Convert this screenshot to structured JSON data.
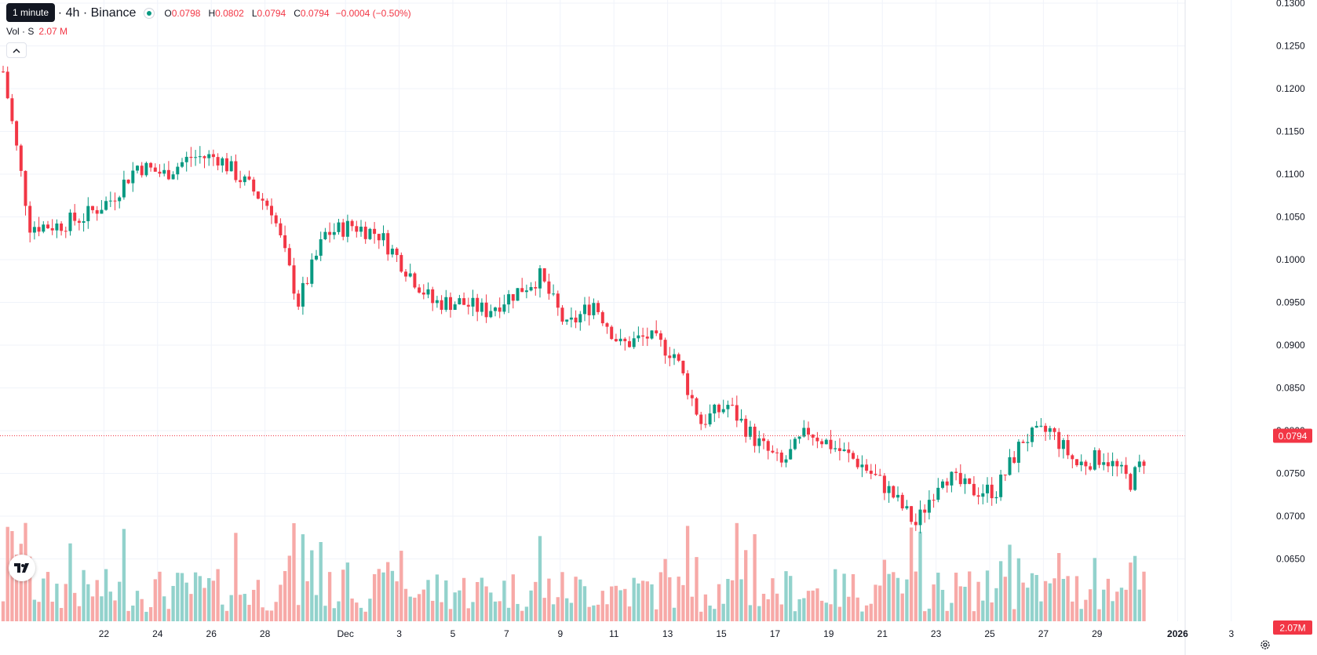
{
  "legend": {
    "symbol": "…herUS · 4h · Binance",
    "open_label": "O",
    "open": "0.0798",
    "high_label": "H",
    "high": "0.0802",
    "low_label": "L",
    "low": "0.0794",
    "close_label": "C",
    "close": "0.0794",
    "change": "−0.0004 (−0.50%)"
  },
  "tooltip": "1 minute",
  "volume_legend": {
    "label": "Vol · S",
    "value": "2.07 M"
  },
  "price_axis": {
    "labels": [
      "0.1300",
      "0.1250",
      "0.1200",
      "0.1150",
      "0.1100",
      "0.1050",
      "0.1000",
      "0.0950",
      "0.0900",
      "0.0850",
      "0.0800",
      "0.0750",
      "0.0700",
      "0.0650"
    ],
    "last_price": "0.0794",
    "last_volume": "2.07M"
  },
  "time_axis": {
    "labels": [
      "22",
      "24",
      "26",
      "28",
      "Dec",
      "3",
      "5",
      "7",
      "9",
      "11",
      "13",
      "15",
      "17",
      "19",
      "21",
      "23",
      "25",
      "27",
      "29",
      "2026",
      "3"
    ]
  },
  "icons": {
    "logo": "tradingview-logo-icon",
    "collapse": "chevron-up-icon",
    "settings": "gear-icon",
    "status": "market-open-dot-icon"
  },
  "colors": {
    "up": "#089981",
    "down": "#f23645",
    "up_volume": "#92d2cc",
    "down_volume": "#f7a9a7",
    "grid": "#f0f3fa"
  },
  "chart_data": {
    "type": "candlestick",
    "interval": "4h",
    "last_close": 0.0794,
    "waypoints": [
      {
        "date": "Nov 20",
        "price": 0.122
      },
      {
        "date": "Nov 21",
        "price": 0.104
      },
      {
        "date": "Nov 22",
        "price": 0.104
      },
      {
        "date": "Nov 23",
        "price": 0.105
      },
      {
        "date": "Nov 24",
        "price": 0.107
      },
      {
        "date": "Nov 25",
        "price": 0.111
      },
      {
        "date": "Nov 26",
        "price": 0.11
      },
      {
        "date": "Nov 27",
        "price": 0.112
      },
      {
        "date": "Nov 28",
        "price": 0.112
      },
      {
        "date": "Nov 29",
        "price": 0.109
      },
      {
        "date": "Nov 30",
        "price": 0.106
      },
      {
        "date": "Dec 1",
        "price": 0.095
      },
      {
        "date": "Dec 2",
        "price": 0.103
      },
      {
        "date": "Dec 3",
        "price": 0.104
      },
      {
        "date": "Dec 4",
        "price": 0.103
      },
      {
        "date": "Dec 5",
        "price": 0.099
      },
      {
        "date": "Dec 6",
        "price": 0.095
      },
      {
        "date": "Dec 7",
        "price": 0.095
      },
      {
        "date": "Dec 8",
        "price": 0.094
      },
      {
        "date": "Dec 9",
        "price": 0.096
      },
      {
        "date": "Dec 10",
        "price": 0.098
      },
      {
        "date": "Dec 11",
        "price": 0.092
      },
      {
        "date": "Dec 12",
        "price": 0.095
      },
      {
        "date": "Dec 13",
        "price": 0.09
      },
      {
        "date": "Dec 14",
        "price": 0.091
      },
      {
        "date": "Dec 15",
        "price": 0.089
      },
      {
        "date": "Dec 16",
        "price": 0.081
      },
      {
        "date": "Dec 17",
        "price": 0.083
      },
      {
        "date": "Dec 18",
        "price": 0.079
      },
      {
        "date": "Dec 19",
        "price": 0.076
      },
      {
        "date": "Dec 20",
        "price": 0.08
      },
      {
        "date": "Dec 21",
        "price": 0.078
      },
      {
        "date": "Dec 22",
        "price": 0.076
      },
      {
        "date": "Dec 23",
        "price": 0.073
      },
      {
        "date": "Dec 24",
        "price": 0.069
      },
      {
        "date": "Dec 25",
        "price": 0.075
      },
      {
        "date": "Dec 26",
        "price": 0.073
      },
      {
        "date": "Dec 27",
        "price": 0.073
      },
      {
        "date": "Dec 28",
        "price": 0.079
      },
      {
        "date": "Dec 29",
        "price": 0.08
      },
      {
        "date": "Dec 30",
        "price": 0.076
      },
      {
        "date": "Dec 31",
        "price": 0.077
      },
      {
        "date": "Jan 1",
        "price": 0.074
      },
      {
        "date": "Jan 2",
        "price": 0.0794
      }
    ],
    "price_range": [
      0.062,
      0.13
    ],
    "grid": true
  }
}
